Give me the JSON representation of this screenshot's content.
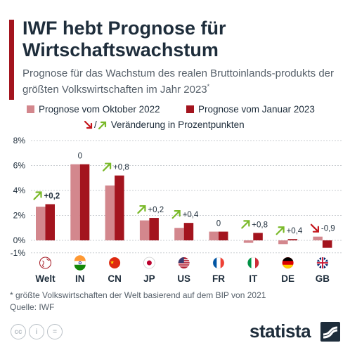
{
  "header": {
    "title": "IWF hebt Prognose für Wirtschaftswachstum",
    "subtitle": "Prognose für das Wachstum des realen Bruttoinlands-produkts der größten Volkswirtschaften im Jahr 2023",
    "subtitle_mark": "*"
  },
  "legend": {
    "series_oct": "Prognose vom Oktober 2022",
    "series_jan": "Prognose vom Januar 2023",
    "change_sep": "/",
    "change_label": "Veränderung in Prozentpunkten"
  },
  "colors": {
    "accent": "#a3141e",
    "series_oct": "#d3878d",
    "series_jan": "#a3141e",
    "arrow_up": "#7ab929",
    "arrow_down": "#c4171d",
    "text": "#1e2d3b",
    "grid": "#c9cdd1"
  },
  "chart_data": {
    "type": "bar",
    "categories": [
      "Welt",
      "IN",
      "CN",
      "JP",
      "US",
      "FR",
      "IT",
      "DE",
      "GB"
    ],
    "series": [
      {
        "name": "Prognose vom Oktober 2022",
        "values": [
          2.7,
          6.1,
          4.4,
          1.6,
          1.0,
          0.7,
          -0.2,
          -0.3,
          0.3
        ]
      },
      {
        "name": "Prognose vom Januar 2023",
        "values": [
          2.9,
          6.1,
          5.2,
          1.8,
          1.4,
          0.7,
          0.6,
          0.1,
          -0.6
        ]
      }
    ],
    "change_labels": [
      "+0,2",
      "0",
      "+0,8",
      "+0,2",
      "+0,4",
      "0",
      "+0,8",
      "+0,4",
      "-0,9"
    ],
    "change_direction": [
      "up",
      "none",
      "up",
      "up",
      "up",
      "none",
      "up",
      "up",
      "down"
    ],
    "flag_icons": [
      "globe-icon",
      "india-flag-icon",
      "china-flag-icon",
      "japan-flag-icon",
      "usa-flag-icon",
      "france-flag-icon",
      "italy-flag-icon",
      "germany-flag-icon",
      "uk-flag-icon"
    ],
    "y_ticks": [
      "8%",
      "6%",
      "4%",
      "2%",
      "0%",
      "-1%"
    ],
    "y_tick_values": [
      8,
      6,
      4,
      2,
      0,
      -1
    ],
    "ylim": [
      -1,
      8
    ],
    "grid": true,
    "legend_position": "top"
  },
  "footer": {
    "footnote": "* größte Volkswirtschaften der Welt basierend auf dem BIP von 2021",
    "source": "Quelle: IWF",
    "brand": "statista",
    "license_icons": [
      "cc-icon",
      "person-icon",
      "equals-icon"
    ],
    "license_labels": [
      "cc",
      "i",
      "="
    ]
  }
}
